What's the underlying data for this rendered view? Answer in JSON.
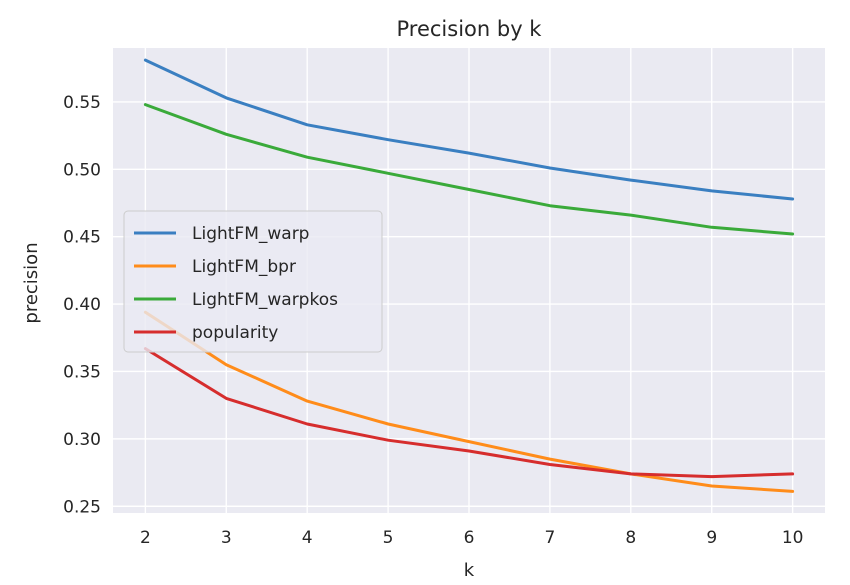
{
  "chart_data": {
    "type": "line",
    "title": "Precision by k",
    "xlabel": "k",
    "ylabel": "precision",
    "x": [
      2,
      3,
      4,
      5,
      6,
      7,
      8,
      9,
      10
    ],
    "xlim": [
      1.6,
      10.4
    ],
    "ylim": [
      0.245,
      0.59
    ],
    "yticks": [
      0.25,
      0.3,
      0.35,
      0.4,
      0.45,
      0.5,
      0.55
    ],
    "ytick_labels": [
      "0.25",
      "0.30",
      "0.35",
      "0.40",
      "0.45",
      "0.50",
      "0.55"
    ],
    "xticks": [
      2,
      3,
      4,
      5,
      6,
      7,
      8,
      9,
      10
    ],
    "xtick_labels": [
      "2",
      "3",
      "4",
      "5",
      "6",
      "7",
      "8",
      "9",
      "10"
    ],
    "grid": true,
    "legend_position": "center-left",
    "series": [
      {
        "name": "LightFM_warp",
        "color": "#3a7fc1",
        "values": [
          0.581,
          0.553,
          0.533,
          0.522,
          0.512,
          0.501,
          0.492,
          0.484,
          0.478
        ]
      },
      {
        "name": "LightFM_bpr",
        "color": "#ff8c1a",
        "values": [
          0.394,
          0.355,
          0.328,
          0.311,
          0.298,
          0.285,
          0.274,
          0.265,
          0.261
        ]
      },
      {
        "name": "LightFM_warpkos",
        "color": "#3aaa3a",
        "values": [
          0.548,
          0.526,
          0.509,
          0.497,
          0.485,
          0.473,
          0.466,
          0.457,
          0.452
        ]
      },
      {
        "name": "popularity",
        "color": "#d62d2d",
        "values": [
          0.367,
          0.33,
          0.311,
          0.299,
          0.291,
          0.281,
          0.274,
          0.272,
          0.274
        ]
      }
    ]
  }
}
